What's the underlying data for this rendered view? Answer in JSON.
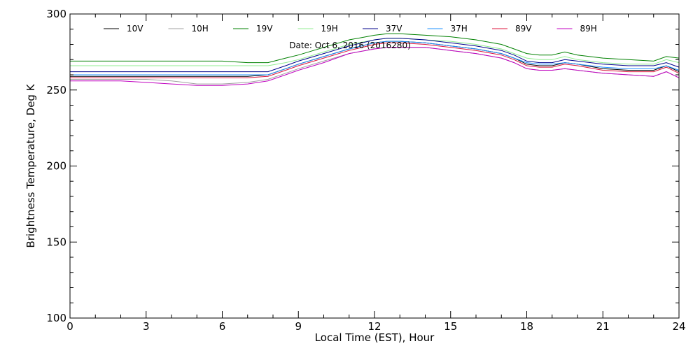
{
  "chart_data": {
    "type": "line",
    "title": "",
    "annotation": "Date: Oct  6, 2016 (2016280)",
    "xlabel": "Local Time (EST), Hour",
    "ylabel": "Brightness Temperature, Deg K",
    "xlim": [
      0,
      24
    ],
    "ylim": [
      100,
      300
    ],
    "x_ticks": [
      0,
      3,
      6,
      9,
      12,
      15,
      18,
      21,
      24
    ],
    "y_ticks": [
      100,
      150,
      200,
      250,
      300
    ],
    "grid": false,
    "legend": "top",
    "x": [
      0,
      1,
      2,
      3,
      4,
      5,
      6,
      7,
      7.8,
      8.5,
      9,
      10,
      11,
      12,
      12.5,
      13,
      14,
      15,
      16,
      17,
      17.5,
      18,
      18.5,
      19,
      19.5,
      20,
      21,
      22,
      23,
      23.5,
      24
    ],
    "series": [
      {
        "name": "10V",
        "color": "#000000",
        "values": [
          259,
          259,
          259,
          259,
          259,
          259,
          259,
          259,
          260,
          264,
          267,
          272,
          277,
          281,
          282,
          282,
          281,
          279,
          277,
          274,
          271,
          267,
          266,
          266,
          268,
          267,
          264,
          263,
          263,
          266,
          262
        ]
      },
      {
        "name": "10H",
        "color": "#a0a0a0",
        "values": [
          257,
          257,
          257,
          257,
          256,
          254,
          254,
          255,
          257,
          261,
          264,
          269,
          274,
          277,
          278,
          278,
          278,
          276,
          274,
          271,
          268,
          264,
          263,
          263,
          264,
          263,
          261,
          260,
          259,
          262,
          258
        ]
      },
      {
        "name": "19V",
        "color": "#008000",
        "values": [
          269,
          269,
          269,
          269,
          269,
          269,
          269,
          268,
          268,
          271,
          273,
          278,
          283,
          286,
          287,
          287,
          286,
          285,
          283,
          280,
          277,
          274,
          273,
          273,
          275,
          273,
          271,
          270,
          269,
          272,
          271
        ]
      },
      {
        "name": "19H",
        "color": "#90ee90",
        "values": [
          266,
          266,
          266,
          266,
          266,
          266,
          266,
          266,
          266,
          268,
          270,
          275,
          280,
          283,
          284,
          284,
          283,
          282,
          280,
          277,
          274,
          271,
          270,
          270,
          272,
          270,
          268,
          267,
          267,
          270,
          268
        ]
      },
      {
        "name": "37V",
        "color": "#00008b",
        "values": [
          262,
          262,
          262,
          262,
          262,
          262,
          262,
          262,
          262,
          266,
          269,
          274,
          279,
          283,
          284,
          284,
          283,
          281,
          279,
          276,
          273,
          269,
          268,
          268,
          270,
          269,
          267,
          266,
          266,
          268,
          265
        ]
      },
      {
        "name": "37H",
        "color": "#1e90ff",
        "values": [
          260,
          260,
          260,
          260,
          260,
          260,
          260,
          260,
          260,
          264,
          267,
          272,
          277,
          281,
          282,
          282,
          281,
          279,
          277,
          274,
          271,
          268,
          267,
          267,
          268,
          267,
          265,
          264,
          264,
          266,
          263
        ]
      },
      {
        "name": "89V",
        "color": "#dc143c",
        "values": [
          258,
          258,
          258,
          258,
          258,
          258,
          258,
          258,
          259,
          263,
          266,
          271,
          276,
          280,
          281,
          281,
          280,
          278,
          276,
          273,
          270,
          266,
          265,
          265,
          267,
          266,
          263,
          262,
          262,
          265,
          261
        ]
      },
      {
        "name": "89H",
        "color": "#c000c0",
        "values": [
          256,
          256,
          256,
          255,
          254,
          253,
          253,
          254,
          256,
          260,
          263,
          268,
          274,
          277,
          278,
          278,
          278,
          276,
          274,
          271,
          268,
          264,
          263,
          263,
          264,
          263,
          261,
          260,
          259,
          262,
          258
        ]
      }
    ]
  }
}
